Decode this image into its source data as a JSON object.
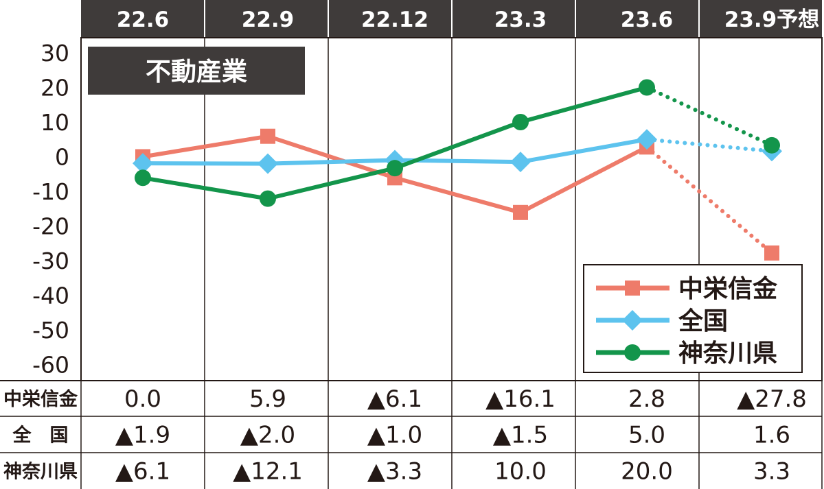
{
  "chart_data": {
    "type": "line",
    "title": "不動産業",
    "categories": [
      "22.6",
      "22.9",
      "22.12",
      "23.3",
      "23.6",
      "23.9予想"
    ],
    "ylim": [
      -60,
      30
    ],
    "yticks": [
      "30",
      "20",
      "10",
      "0",
      "-10",
      "-20",
      "-30",
      "-40",
      "-50",
      "-60"
    ],
    "grid": "vertical",
    "legend_position": "bottom-right",
    "forecast_from_index": 4,
    "series": [
      {
        "name": "中栄信金",
        "values": [
          0.0,
          5.9,
          -6.1,
          -16.1,
          2.8,
          -27.8
        ],
        "color": "#ee7b6a",
        "marker": "square"
      },
      {
        "name": "全国",
        "values": [
          -1.9,
          -2.0,
          -1.0,
          -1.5,
          5.0,
          1.6
        ],
        "color": "#5dc3ee",
        "marker": "diamond"
      },
      {
        "name": "神奈川県",
        "values": [
          -6.1,
          -12.1,
          -3.3,
          10.0,
          20.0,
          3.3
        ],
        "color": "#13954b",
        "marker": "circle"
      }
    ],
    "table": {
      "rows": [
        {
          "label": "中栄信金",
          "cells": [
            "0.0",
            "5.9",
            "▲6.1",
            "▲16.1",
            "2.8",
            "▲27.8"
          ]
        },
        {
          "label": "全　国",
          "cells": [
            "▲1.9",
            "▲2.0",
            "▲1.0",
            "▲1.5",
            "5.0",
            "1.6"
          ]
        },
        {
          "label": "神奈川県",
          "cells": [
            "▲6.1",
            "▲12.1",
            "▲3.3",
            "10.0",
            "20.0",
            "3.3"
          ]
        }
      ]
    },
    "colors": {
      "header_bg": "#3f3b3a",
      "header_text": "#ffffff",
      "text": "#231815"
    }
  }
}
